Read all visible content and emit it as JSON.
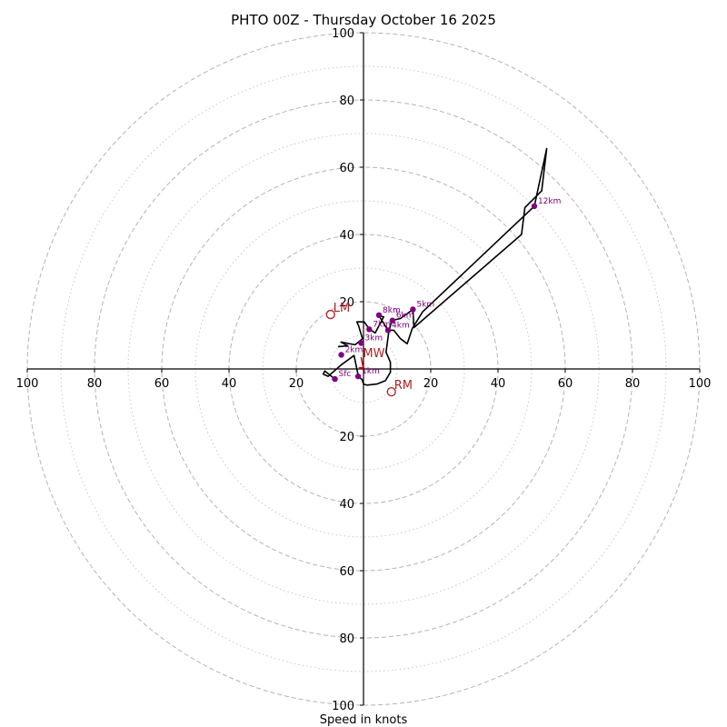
{
  "chart_data": {
    "type": "hodograph",
    "title": "PHTO 00Z - Thursday October 16 2025",
    "xlabel": "Speed in knots",
    "units": "knots",
    "xlim": [
      -100,
      100
    ],
    "ylim": [
      -100,
      100
    ],
    "rings": {
      "major": [
        20,
        40,
        60,
        80,
        100
      ],
      "minor": [
        10,
        30,
        50,
        70,
        90
      ]
    },
    "tick_labels": {
      "x_left": [
        "100",
        "80",
        "60",
        "40",
        "20"
      ],
      "x_right": [
        "20",
        "40",
        "60",
        "80",
        "100"
      ],
      "y_top": [
        "20",
        "40",
        "60",
        "80",
        "100"
      ],
      "y_bottom": [
        "20",
        "40",
        "60",
        "80",
        "100"
      ]
    },
    "trace": [
      [
        -8.5,
        -3.0
      ],
      [
        -11.5,
        -0.6
      ],
      [
        -12.0,
        -1.5
      ],
      [
        -10.5,
        -2.2
      ],
      [
        -6.5,
        1.3
      ],
      [
        -2.8,
        4.0
      ],
      [
        -1.5,
        -2.2
      ],
      [
        -0.4,
        -3.2
      ],
      [
        0.0,
        -4.5
      ],
      [
        1.0,
        -4.8
      ],
      [
        4.0,
        -4.5
      ],
      [
        6.5,
        -3.5
      ],
      [
        8.0,
        -1.0
      ],
      [
        8.0,
        2.0
      ],
      [
        6.7,
        5.0
      ],
      [
        7.5,
        11.0
      ],
      [
        8.3,
        14.0
      ],
      [
        9.2,
        14.6
      ],
      [
        11.0,
        15.0
      ],
      [
        14.7,
        17.7
      ],
      [
        15.0,
        12.3
      ],
      [
        47.0,
        40.0
      ],
      [
        48.0,
        48.0
      ],
      [
        53.0,
        53.0
      ],
      [
        54.5,
        65.5
      ],
      [
        50.8,
        48.4
      ],
      [
        17.6,
        17.0
      ],
      [
        14.5,
        12.0
      ],
      [
        13.0,
        7.5
      ],
      [
        11.0,
        9.0
      ],
      [
        9.0,
        11.5
      ],
      [
        7.3,
        11.5
      ],
      [
        4.6,
        15.8
      ],
      [
        6.0,
        15.5
      ],
      [
        3.5,
        10.7
      ],
      [
        1.8,
        11.8
      ],
      [
        0.2,
        14.0
      ],
      [
        -2.0,
        14.0
      ],
      [
        -1.5,
        13.0
      ],
      [
        -0.3,
        9.0
      ],
      [
        -2.5,
        7.2
      ],
      [
        -6.7,
        8.0
      ],
      [
        -4.7,
        6.9
      ],
      [
        -7.6,
        6.6
      ]
    ],
    "height_markers": [
      {
        "label": "Sfc",
        "u": -8.5,
        "v": -3.0
      },
      {
        "label": "1km",
        "u": -1.6,
        "v": -2.2
      },
      {
        "label": "2km",
        "u": -6.6,
        "v": 4.2
      },
      {
        "label": "3km",
        "u": -0.7,
        "v": 7.7
      },
      {
        "label": "4km",
        "u": 7.3,
        "v": 11.5
      },
      {
        "label": "5km",
        "u": 14.7,
        "v": 17.7
      },
      {
        "label": "6km",
        "u": 8.6,
        "v": 14.4
      },
      {
        "label": "7km",
        "u": 1.7,
        "v": 11.8
      },
      {
        "label": "8km",
        "u": 4.6,
        "v": 16.0
      },
      {
        "label": "12km",
        "u": 50.8,
        "v": 48.4
      }
    ],
    "motions": [
      {
        "label": "LM",
        "u": -9.8,
        "v": 16.2
      },
      {
        "label": "RM",
        "u": 8.3,
        "v": -6.8
      }
    ],
    "mean_wind": {
      "label": "MW",
      "u": -0.7,
      "v": 3.2
    }
  }
}
